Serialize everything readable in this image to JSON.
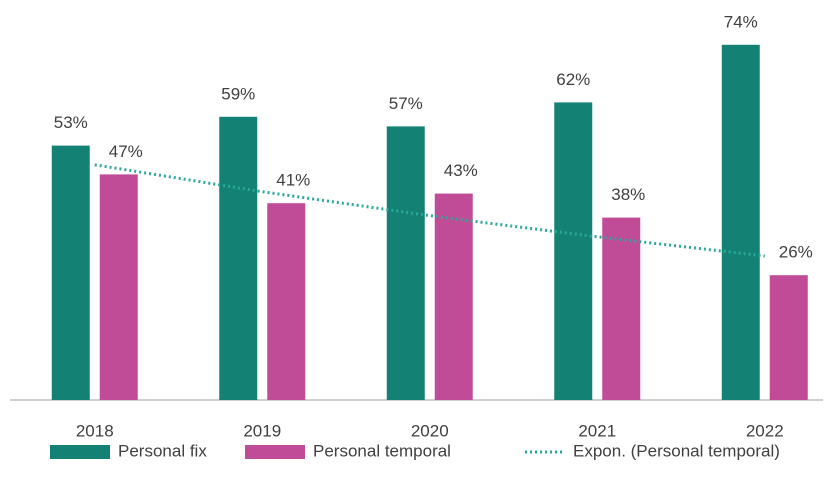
{
  "chart_data": {
    "type": "bar",
    "categories": [
      "2018",
      "2019",
      "2020",
      "2021",
      "2022"
    ],
    "series": [
      {
        "name": "Personal fix",
        "color": "#138275",
        "values": [
          53,
          59,
          57,
          62,
          74
        ],
        "value_labels": [
          "53%",
          "59%",
          "57%",
          "62%",
          "74%"
        ]
      },
      {
        "name": "Personal temporal",
        "color": "#c04b97",
        "values": [
          47,
          41,
          43,
          38,
          26
        ],
        "value_labels": [
          "47%",
          "41%",
          "43%",
          "38%",
          "26%"
        ]
      },
      {
        "name": "Expon. (Personal temporal)",
        "type": "line",
        "style": "dotted",
        "color": "#2aa89a",
        "values": [
          49,
          43.4,
          38.4,
          34,
          30
        ]
      }
    ],
    "ylim": [
      0,
      80
    ],
    "legend": "bottom",
    "grid": false
  }
}
